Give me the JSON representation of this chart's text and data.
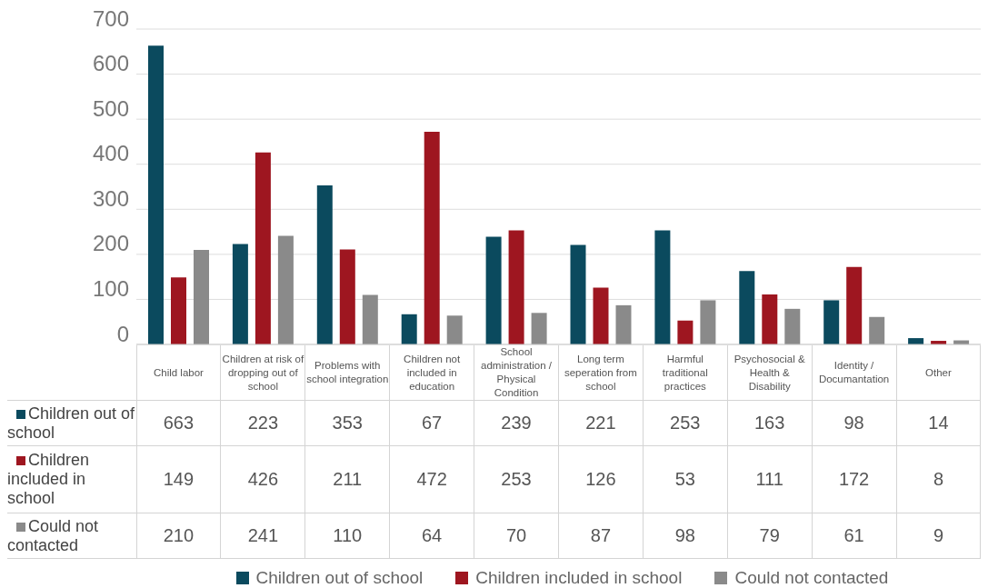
{
  "chart_data": {
    "type": "bar",
    "categories": [
      "Child labor",
      "Children at risk of dropping out of school",
      "Problems with school integration",
      "Children not included in education",
      "School administration / Physical Condition",
      "Long term seperation from school",
      "Harmful traditional practices",
      "Psychosocial & Health & Disability",
      "Identity / Documantation",
      "Other"
    ],
    "series": [
      {
        "name": "Children out of school",
        "color": "#0b4a5e",
        "values": [
          663,
          223,
          353,
          67,
          239,
          221,
          253,
          163,
          98,
          14
        ]
      },
      {
        "name": "Children included in school",
        "color": "#9e1620",
        "values": [
          149,
          426,
          211,
          472,
          253,
          126,
          53,
          111,
          172,
          8
        ]
      },
      {
        "name": "Could not contacted",
        "color": "#8a8a8a",
        "values": [
          210,
          241,
          110,
          64,
          70,
          87,
          98,
          79,
          61,
          9
        ]
      }
    ],
    "ylim": [
      0,
      700
    ],
    "yticks": [
      0,
      100,
      200,
      300,
      400,
      500,
      600,
      700
    ],
    "grid": "y",
    "legend": "bottom",
    "data_labels": true
  }
}
